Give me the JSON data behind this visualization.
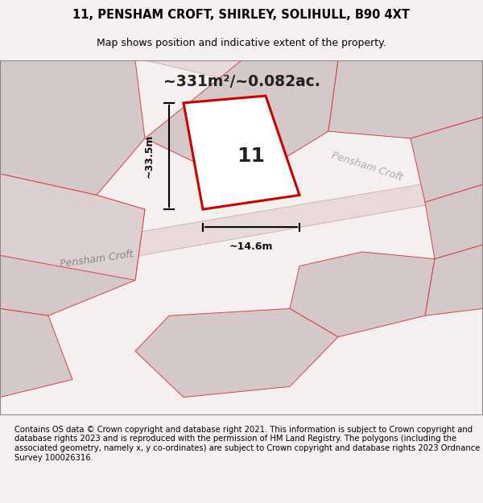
{
  "title_line1": "11, PENSHAM CROFT, SHIRLEY, SOLIHULL, B90 4XT",
  "title_line2": "Map shows position and indicative extent of the property.",
  "area_text": "~331m²/~0.082ac.",
  "property_number": "11",
  "dim_height": "~33.5m",
  "dim_width": "~14.6m",
  "road_label1": "Pensham Croft",
  "road_label2": "Pensham Croft",
  "footer_text": "Contains OS data © Crown copyright and database right 2021. This information is subject to Crown copyright and database rights 2023 and is reproduced with the permission of HM Land Registry. The polygons (including the associated geometry, namely x, y co-ordinates) are subject to Crown copyright and database rights 2023 Ordnance Survey 100026316.",
  "bg_color": "#f5f0f0",
  "map_bg": "#f0e8e8",
  "parcel_color": "#d4c8c8",
  "highlight_color": "#cc0000",
  "highlight_fill": "#ffffff",
  "road_color": "#ffffff",
  "line_color": "#d44444",
  "border_color": "#ccbbbb"
}
